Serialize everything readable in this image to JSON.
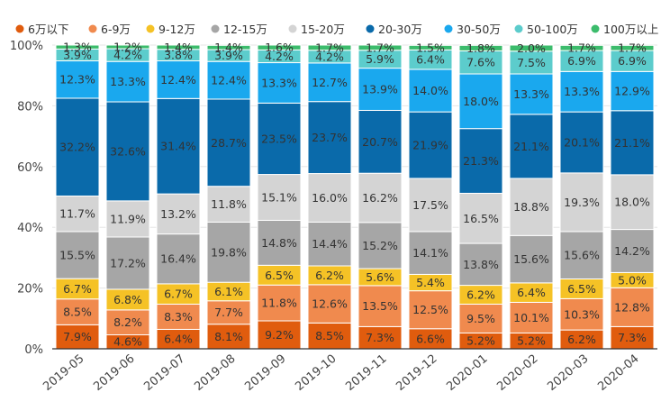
{
  "chart_data": {
    "type": "bar",
    "stacked": true,
    "percent": true,
    "categories": [
      "2019-05",
      "2019-06",
      "2019-07",
      "2019-08",
      "2019-09",
      "2019-10",
      "2019-11",
      "2019-12",
      "2020-01",
      "2020-02",
      "2020-03",
      "2020-04"
    ],
    "ylim": [
      0,
      100
    ],
    "yticks": [
      "0%",
      "20%",
      "40%",
      "60%",
      "80%",
      "100%"
    ],
    "legend_position": "top",
    "series": [
      {
        "name": "6万以下",
        "color": "#e05c0e",
        "values": [
          7.9,
          4.6,
          6.4,
          8.1,
          9.2,
          8.5,
          7.3,
          6.6,
          5.2,
          5.2,
          6.2,
          7.3
        ]
      },
      {
        "name": "6-9万",
        "color": "#f08a4e",
        "values": [
          8.5,
          8.2,
          8.3,
          7.7,
          11.8,
          12.6,
          13.5,
          12.5,
          9.5,
          10.1,
          10.3,
          12.8
        ]
      },
      {
        "name": "9-12万",
        "color": "#f5c226",
        "values": [
          6.7,
          6.8,
          6.7,
          6.1,
          6.5,
          6.2,
          5.6,
          5.4,
          6.2,
          6.4,
          6.5,
          5.0
        ]
      },
      {
        "name": "12-15万",
        "color": "#a6a6a6",
        "values": [
          15.5,
          17.2,
          16.4,
          19.8,
          14.8,
          14.4,
          15.2,
          14.1,
          13.8,
          15.6,
          15.6,
          14.2
        ]
      },
      {
        "name": "15-20万",
        "color": "#d4d4d4",
        "values": [
          11.7,
          11.9,
          13.2,
          11.8,
          15.1,
          16.0,
          16.2,
          17.5,
          16.5,
          18.8,
          19.3,
          18.0
        ]
      },
      {
        "name": "20-30万",
        "color": "#0a6aaa",
        "values": [
          32.2,
          32.6,
          31.4,
          28.7,
          23.5,
          23.7,
          20.7,
          21.9,
          21.3,
          21.1,
          20.1,
          21.1
        ]
      },
      {
        "name": "30-50万",
        "color": "#1aa8ee",
        "values": [
          12.3,
          13.3,
          12.4,
          12.4,
          13.3,
          12.7,
          13.9,
          14.0,
          18.0,
          13.3,
          13.3,
          12.9
        ]
      },
      {
        "name": "50-100万",
        "color": "#5ccccc",
        "values": [
          3.9,
          4.2,
          3.8,
          3.9,
          4.2,
          4.2,
          5.9,
          6.4,
          7.6,
          7.5,
          6.9,
          6.9
        ]
      },
      {
        "name": "100万以上",
        "color": "#3cbc6c",
        "values": [
          1.3,
          1.2,
          1.4,
          1.4,
          1.6,
          1.7,
          1.7,
          1.5,
          1.8,
          2.0,
          1.7,
          1.7
        ]
      }
    ]
  }
}
